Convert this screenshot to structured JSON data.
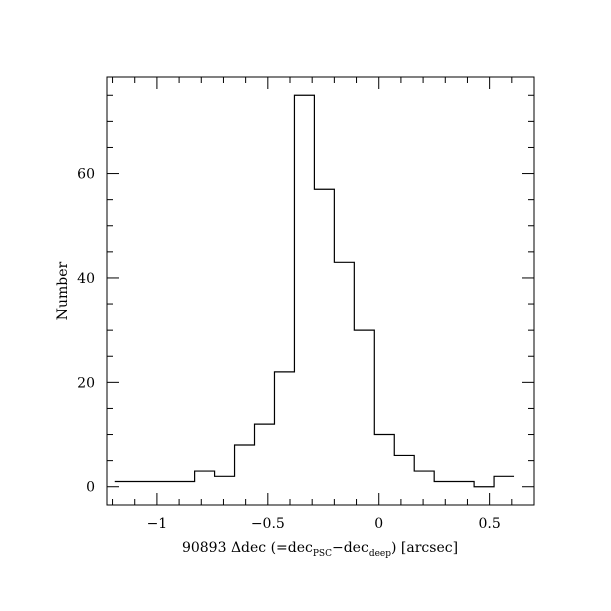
{
  "chart_data": {
    "type": "histogram",
    "title": "",
    "xlabel": {
      "prefix": "90893 Δdec (=dec",
      "sub1": "PSC",
      "mid": "−dec",
      "sub2": "deep",
      "suffix": ") [arcsec]"
    },
    "ylabel": "Number",
    "xlim": [
      -1.225,
      0.7
    ],
    "ylim": [
      -3.5,
      78.5
    ],
    "x_major_ticks": [
      -1,
      -0.5,
      0,
      0.5
    ],
    "x_major_tick_labels": [
      "−1",
      "−0.5",
      "0",
      "0.5"
    ],
    "x_minor_step": 0.1,
    "y_major_ticks": [
      0,
      20,
      40,
      60
    ],
    "y_major_tick_labels": [
      "0",
      "20",
      "40",
      "60"
    ],
    "y_minor_step": 5,
    "grid": false,
    "bin_edges": [
      -1.19,
      -1.1,
      -1.01,
      -0.92,
      -0.83,
      -0.74,
      -0.65,
      -0.56,
      -0.47,
      -0.38,
      -0.29,
      -0.2,
      -0.11,
      -0.02,
      0.07,
      0.16,
      0.25,
      0.34,
      0.43,
      0.52,
      0.61
    ],
    "counts": [
      1,
      1,
      1,
      1,
      3,
      2,
      8,
      12,
      22,
      75,
      57,
      43,
      30,
      10,
      6,
      3,
      1,
      1,
      0,
      2
    ]
  }
}
